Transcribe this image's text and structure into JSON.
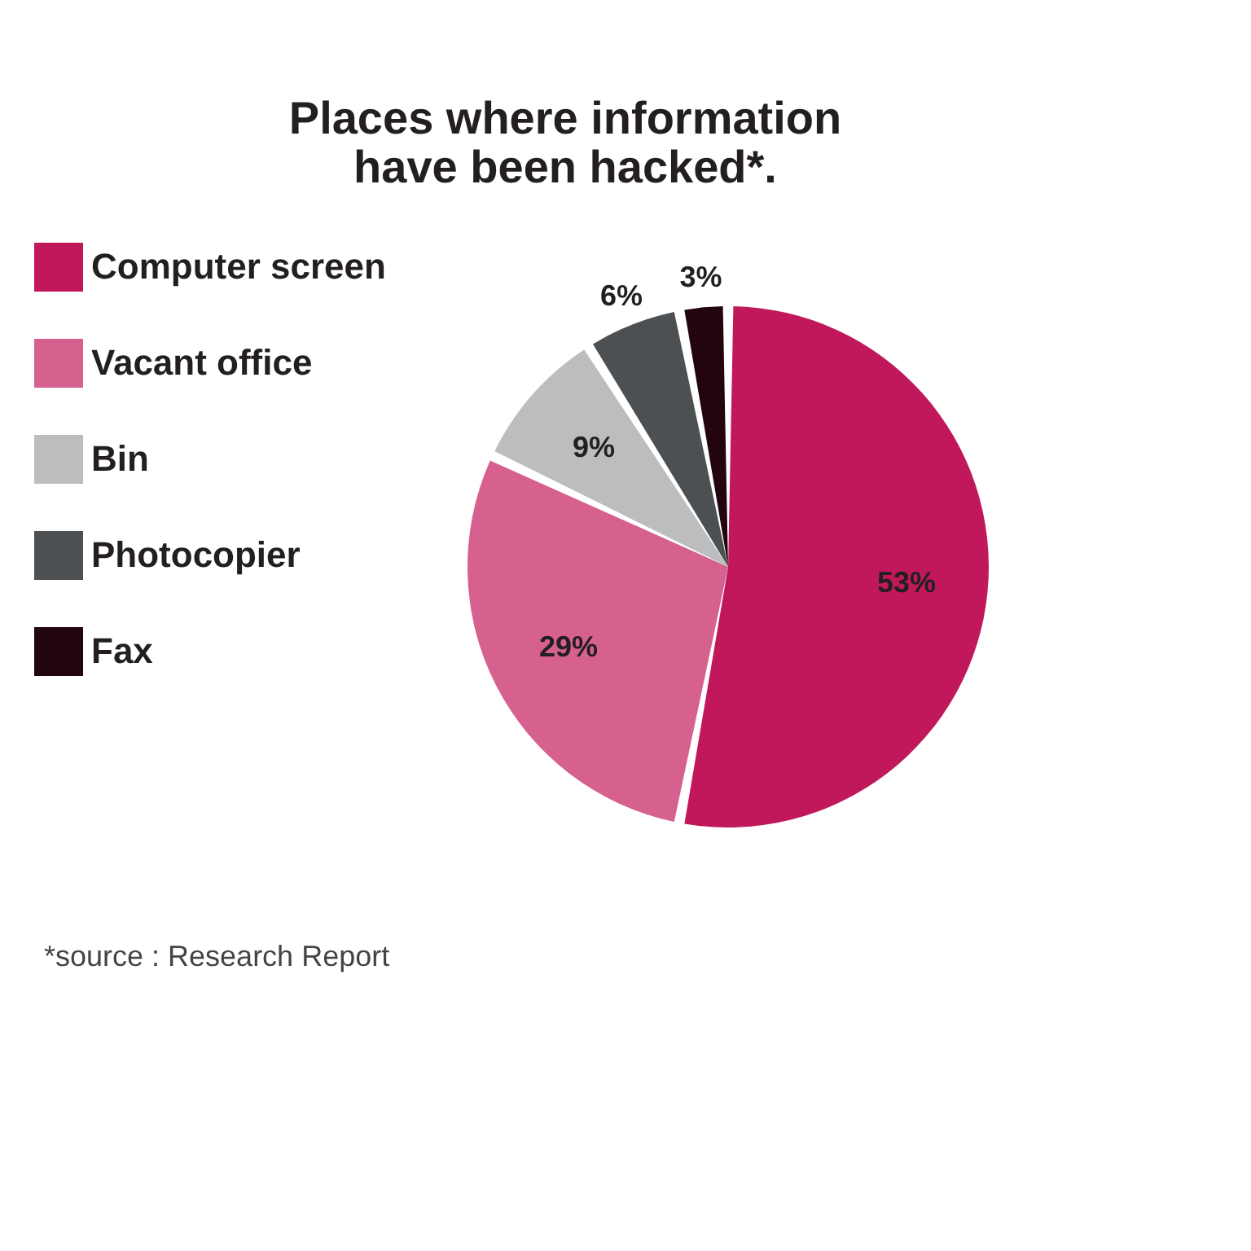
{
  "chart_data": {
    "type": "pie",
    "title": [
      "Places where information",
      "have been hacked*."
    ],
    "categories": [
      "Computer screen",
      "Vacant office",
      "Bin",
      "Photocopier",
      "Fax"
    ],
    "values": [
      53,
      29,
      9,
      6,
      3
    ],
    "colors": [
      "#c0185a",
      "#d6608e",
      "#bcbdbf",
      "#4d5052",
      "#230510"
    ],
    "value_labels": [
      "53%",
      "29%",
      "9%",
      "6%",
      "3%"
    ],
    "legend": "left",
    "annotations": [
      "*source : Research Report"
    ]
  }
}
